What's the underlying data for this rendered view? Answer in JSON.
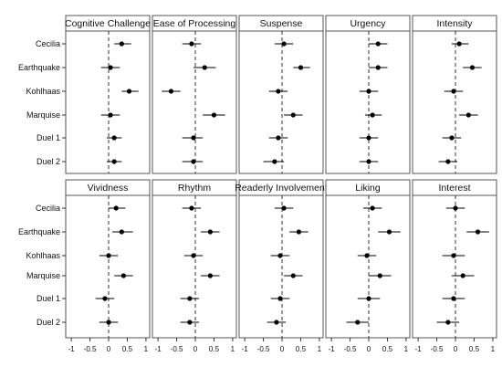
{
  "chart_data": {
    "type": "scatter",
    "subtype": "coefficient-plot",
    "rows": [
      "Cecilia",
      "Earthquake",
      "Kohlhaas",
      "Marquise",
      "Duel 1",
      "Duel 2"
    ],
    "x_ticks": [
      -1,
      -0.5,
      0,
      0.5,
      1
    ],
    "xlim": [
      -1.15,
      1.1
    ],
    "reference_line": {
      "x": 0,
      "style": "dashed"
    },
    "colors": {
      "point": "#000000",
      "frame": "#555555",
      "title_band": "#ffffff",
      "background": "#ffffff"
    },
    "panels": [
      {
        "title": "Cognitive Challenge",
        "estimates": [
          {
            "row": "Cecilia",
            "est": 0.35,
            "lo": 0.15,
            "hi": 0.6
          },
          {
            "row": "Earthquake",
            "est": 0.05,
            "lo": -0.2,
            "hi": 0.3
          },
          {
            "row": "Kohlhaas",
            "est": 0.55,
            "lo": 0.35,
            "hi": 0.8
          },
          {
            "row": "Marquise",
            "est": 0.05,
            "lo": -0.2,
            "hi": 0.3
          },
          {
            "row": "Duel 1",
            "est": 0.15,
            "lo": -0.05,
            "hi": 0.35
          },
          {
            "row": "Duel 2",
            "est": 0.15,
            "lo": -0.05,
            "hi": 0.35
          }
        ]
      },
      {
        "title": "Ease of Processing",
        "estimates": [
          {
            "row": "Cecilia",
            "est": -0.1,
            "lo": -0.35,
            "hi": 0.15
          },
          {
            "row": "Earthquake",
            "est": 0.25,
            "lo": -0.05,
            "hi": 0.55
          },
          {
            "row": "Kohlhaas",
            "est": -0.65,
            "lo": -0.9,
            "hi": -0.4
          },
          {
            "row": "Marquise",
            "est": 0.5,
            "lo": 0.2,
            "hi": 0.8
          },
          {
            "row": "Duel 1",
            "est": -0.05,
            "lo": -0.35,
            "hi": 0.2
          },
          {
            "row": "Duel 2",
            "est": -0.05,
            "lo": -0.35,
            "hi": 0.2
          }
        ]
      },
      {
        "title": "Suspense",
        "estimates": [
          {
            "row": "Cecilia",
            "est": 0.05,
            "lo": -0.2,
            "hi": 0.3
          },
          {
            "row": "Earthquake",
            "est": 0.5,
            "lo": 0.3,
            "hi": 0.75
          },
          {
            "row": "Kohlhaas",
            "est": -0.1,
            "lo": -0.35,
            "hi": 0.15
          },
          {
            "row": "Marquise",
            "est": 0.3,
            "lo": 0.05,
            "hi": 0.55
          },
          {
            "row": "Duel 1",
            "est": -0.1,
            "lo": -0.35,
            "hi": 0.15
          },
          {
            "row": "Duel 2",
            "est": -0.2,
            "lo": -0.5,
            "hi": 0.05
          }
        ]
      },
      {
        "title": "Urgency",
        "estimates": [
          {
            "row": "Cecilia",
            "est": 0.25,
            "lo": 0.0,
            "hi": 0.5
          },
          {
            "row": "Earthquake",
            "est": 0.25,
            "lo": 0.0,
            "hi": 0.5
          },
          {
            "row": "Kohlhaas",
            "est": 0.0,
            "lo": -0.25,
            "hi": 0.25
          },
          {
            "row": "Marquise",
            "est": 0.1,
            "lo": -0.1,
            "hi": 0.35
          },
          {
            "row": "Duel 1",
            "est": 0.0,
            "lo": -0.25,
            "hi": 0.25
          },
          {
            "row": "Duel 2",
            "est": 0.0,
            "lo": -0.25,
            "hi": 0.25
          }
        ]
      },
      {
        "title": "Intensity",
        "estimates": [
          {
            "row": "Cecilia",
            "est": 0.1,
            "lo": -0.1,
            "hi": 0.35
          },
          {
            "row": "Earthquake",
            "est": 0.45,
            "lo": 0.2,
            "hi": 0.7
          },
          {
            "row": "Kohlhaas",
            "est": -0.05,
            "lo": -0.3,
            "hi": 0.2
          },
          {
            "row": "Marquise",
            "est": 0.35,
            "lo": 0.1,
            "hi": 0.6
          },
          {
            "row": "Duel 1",
            "est": -0.1,
            "lo": -0.35,
            "hi": 0.15
          },
          {
            "row": "Duel 2",
            "est": -0.2,
            "lo": -0.45,
            "hi": 0.05
          }
        ]
      },
      {
        "title": "Vividness",
        "estimates": [
          {
            "row": "Cecilia",
            "est": 0.2,
            "lo": 0.0,
            "hi": 0.45
          },
          {
            "row": "Earthquake",
            "est": 0.35,
            "lo": 0.1,
            "hi": 0.65
          },
          {
            "row": "Kohlhaas",
            "est": 0.0,
            "lo": -0.25,
            "hi": 0.25
          },
          {
            "row": "Marquise",
            "est": 0.4,
            "lo": 0.15,
            "hi": 0.65
          },
          {
            "row": "Duel 1",
            "est": -0.1,
            "lo": -0.35,
            "hi": 0.15
          },
          {
            "row": "Duel 2",
            "est": 0.0,
            "lo": -0.25,
            "hi": 0.25
          }
        ]
      },
      {
        "title": "Rhythm",
        "estimates": [
          {
            "row": "Cecilia",
            "est": -0.1,
            "lo": -0.35,
            "hi": 0.15
          },
          {
            "row": "Earthquake",
            "est": 0.4,
            "lo": 0.15,
            "hi": 0.65
          },
          {
            "row": "Kohlhaas",
            "est": -0.05,
            "lo": -0.3,
            "hi": 0.2
          },
          {
            "row": "Marquise",
            "est": 0.4,
            "lo": 0.15,
            "hi": 0.65
          },
          {
            "row": "Duel 1",
            "est": -0.15,
            "lo": -0.4,
            "hi": 0.1
          },
          {
            "row": "Duel 2",
            "est": -0.15,
            "lo": -0.4,
            "hi": 0.1
          }
        ]
      },
      {
        "title": "Readerly Involvement",
        "estimates": [
          {
            "row": "Cecilia",
            "est": 0.05,
            "lo": -0.2,
            "hi": 0.3
          },
          {
            "row": "Earthquake",
            "est": 0.45,
            "lo": 0.2,
            "hi": 0.7
          },
          {
            "row": "Kohlhaas",
            "est": -0.05,
            "lo": -0.3,
            "hi": 0.2
          },
          {
            "row": "Marquise",
            "est": 0.3,
            "lo": 0.05,
            "hi": 0.55
          },
          {
            "row": "Duel 1",
            "est": -0.05,
            "lo": -0.3,
            "hi": 0.2
          },
          {
            "row": "Duel 2",
            "est": -0.15,
            "lo": -0.4,
            "hi": 0.1
          }
        ]
      },
      {
        "title": "Liking",
        "estimates": [
          {
            "row": "Cecilia",
            "est": 0.1,
            "lo": -0.15,
            "hi": 0.35
          },
          {
            "row": "Earthquake",
            "est": 0.55,
            "lo": 0.25,
            "hi": 0.85
          },
          {
            "row": "Kohlhaas",
            "est": -0.05,
            "lo": -0.3,
            "hi": 0.2
          },
          {
            "row": "Marquise",
            "est": 0.3,
            "lo": 0.0,
            "hi": 0.6
          },
          {
            "row": "Duel 1",
            "est": 0.0,
            "lo": -0.3,
            "hi": 0.3
          },
          {
            "row": "Duel 2",
            "est": -0.3,
            "lo": -0.6,
            "hi": 0.0
          }
        ]
      },
      {
        "title": "Interest",
        "estimates": [
          {
            "row": "Cecilia",
            "est": 0.0,
            "lo": -0.25,
            "hi": 0.25
          },
          {
            "row": "Earthquake",
            "est": 0.6,
            "lo": 0.3,
            "hi": 0.9
          },
          {
            "row": "Kohlhaas",
            "est": -0.05,
            "lo": -0.35,
            "hi": 0.25
          },
          {
            "row": "Marquise",
            "est": 0.2,
            "lo": -0.1,
            "hi": 0.5
          },
          {
            "row": "Duel 1",
            "est": -0.05,
            "lo": -0.35,
            "hi": 0.25
          },
          {
            "row": "Duel 2",
            "est": -0.2,
            "lo": -0.5,
            "hi": 0.1
          }
        ]
      }
    ]
  }
}
